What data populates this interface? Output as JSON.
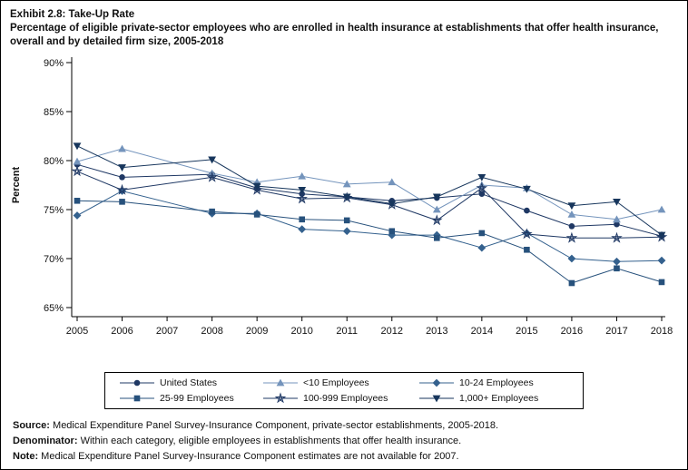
{
  "title": {
    "exhibit": "Exhibit 2.8: Take-Up Rate",
    "subtitle": "Percentage of eligible private-sector employees who are enrolled in health insurance at establishments that offer health insurance, overall and by detailed firm size, 2005-2018"
  },
  "chart_data": {
    "type": "line",
    "title": "Take-Up Rate by detailed firm size, 2005-2018",
    "xlabel": "",
    "ylabel": "Percent",
    "ylim": [
      65,
      90
    ],
    "ytick_step": 5,
    "ytick_suffix": "%",
    "grid": false,
    "legend_position": "bottom",
    "missing_note": "Estimates not available for 2007",
    "x": [
      2005,
      2006,
      2007,
      2008,
      2009,
      2010,
      2011,
      2012,
      2013,
      2014,
      2015,
      2016,
      2017,
      2018
    ],
    "series": [
      {
        "name": "United States",
        "marker": "circle",
        "color": "#1f3864",
        "values": [
          79.6,
          78.3,
          null,
          78.6,
          77.2,
          76.6,
          76.3,
          75.9,
          76.2,
          76.6,
          74.9,
          73.3,
          73.5,
          72.3
        ]
      },
      {
        "name": "<10 Employees",
        "marker": "triangle",
        "color": "#7494bc",
        "values": [
          79.9,
          81.2,
          null,
          78.7,
          77.8,
          78.4,
          77.6,
          77.8,
          75.0,
          77.5,
          77.2,
          74.5,
          74.0,
          75.0
        ]
      },
      {
        "name": "10-24 Employees",
        "marker": "diamond",
        "color": "#34618e",
        "values": [
          74.4,
          76.9,
          null,
          74.6,
          74.6,
          73.0,
          72.8,
          72.4,
          72.4,
          71.1,
          72.6,
          70.0,
          69.7,
          69.8
        ]
      },
      {
        "name": "25-99 Employees",
        "marker": "square",
        "color": "#27517c",
        "values": [
          75.9,
          75.8,
          null,
          74.8,
          74.5,
          74.0,
          73.9,
          72.8,
          72.1,
          72.6,
          70.9,
          67.5,
          69.0,
          67.6
        ]
      },
      {
        "name": "100-999 Employees",
        "marker": "star",
        "color": "#1f3864",
        "values": [
          78.9,
          77.0,
          null,
          78.3,
          77.0,
          76.1,
          76.2,
          75.5,
          73.9,
          77.2,
          72.5,
          72.1,
          72.1,
          72.2
        ]
      },
      {
        "name": "1,000+ Employees",
        "marker": "triangle-down",
        "color": "#17365c",
        "values": [
          81.5,
          79.3,
          null,
          80.1,
          77.4,
          77.0,
          76.3,
          75.6,
          76.3,
          78.3,
          77.1,
          75.4,
          75.8,
          72.4
        ]
      }
    ]
  },
  "footer": {
    "lines": [
      {
        "label": "Source:",
        "text": "Medical Expenditure Panel Survey-Insurance Component, private-sector establishments, 2005-2018."
      },
      {
        "label": "Denominator:",
        "text": "Within each category, eligible employees in establishments that offer health insurance."
      },
      {
        "label": "Note:",
        "text": "Medical Expenditure Panel Survey-Insurance Component estimates are not available for 2007."
      }
    ]
  }
}
